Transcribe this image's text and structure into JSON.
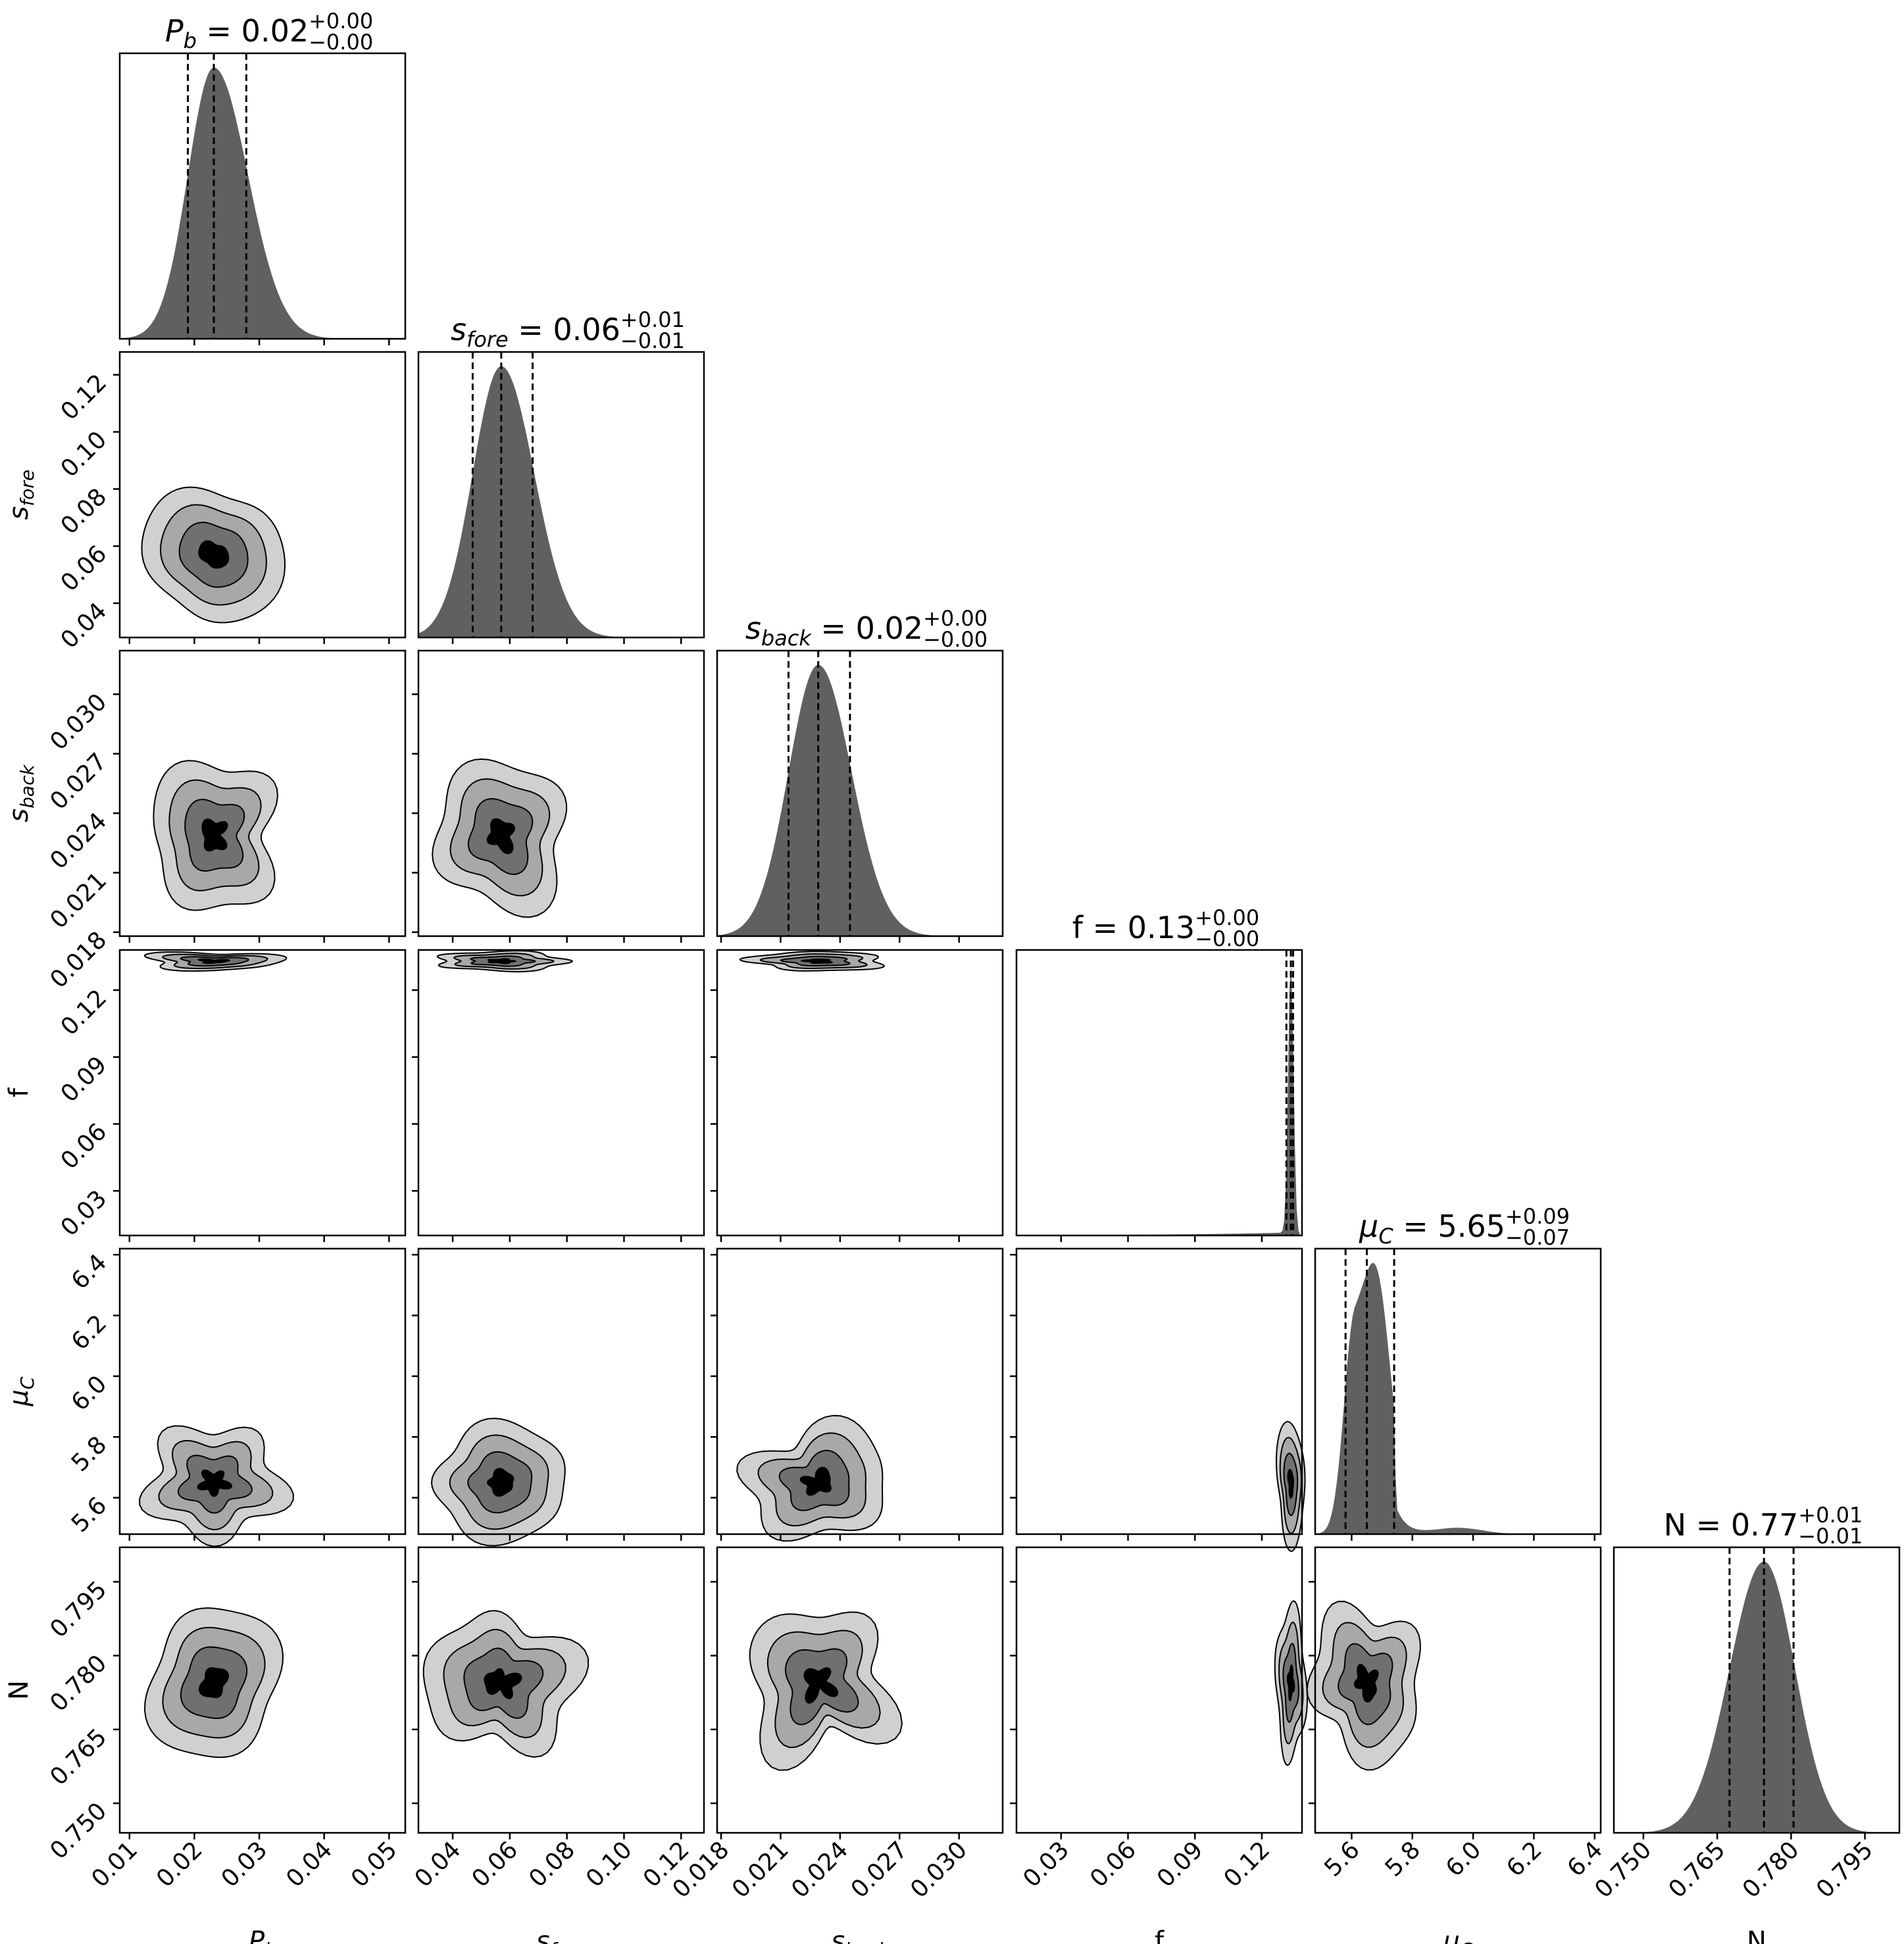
{
  "chart_data": {
    "type": "corner",
    "colors": {
      "hist_fill": "#606060",
      "contour_fills": [
        "#d0d0d0",
        "#a8a8a8",
        "#707070",
        "#000000"
      ],
      "frame": "#000000",
      "quantile_line": "#000000"
    },
    "grid": false,
    "parameters": [
      {
        "key": "P_b",
        "label": "P",
        "label_sub": "b",
        "median": 0.023,
        "q16": 0.019,
        "q84": 0.028,
        "range": [
          0.0085,
          0.0525
        ],
        "ticks": [
          "0.01",
          "0.02",
          "0.03",
          "0.04",
          "0.05"
        ],
        "tick_values": [
          0.01,
          0.02,
          0.03,
          0.04,
          0.05
        ],
        "title_value": "0.02",
        "title_plus": "+0.00",
        "title_minus": "−0.00"
      },
      {
        "key": "s_fore",
        "label": "s",
        "label_sub": "fore",
        "median": 0.057,
        "q16": 0.047,
        "q84": 0.068,
        "range": [
          0.028,
          0.128
        ],
        "ticks": [
          "0.04",
          "0.06",
          "0.08",
          "0.10",
          "0.12"
        ],
        "tick_values": [
          0.04,
          0.06,
          0.08,
          0.1,
          0.12
        ],
        "title_value": "0.06",
        "title_plus": "+0.01",
        "title_minus": "−0.01"
      },
      {
        "key": "s_back",
        "label": "s",
        "label_sub": "back",
        "median": 0.0229,
        "q16": 0.0214,
        "q84": 0.0245,
        "range": [
          0.0178,
          0.0322
        ],
        "ticks": [
          "0.018",
          "0.021",
          "0.024",
          "0.027",
          "0.030"
        ],
        "tick_values": [
          0.018,
          0.021,
          0.024,
          0.027,
          0.03
        ],
        "title_value": "0.02",
        "title_plus": "+0.00",
        "title_minus": "−0.00"
      },
      {
        "key": "f",
        "label": "f",
        "label_sub": "",
        "median": 0.133,
        "q16": 0.131,
        "q84": 0.134,
        "range": [
          0.01,
          0.138
        ],
        "ticks": [
          "0.03",
          "0.06",
          "0.09",
          "0.12"
        ],
        "tick_values": [
          0.03,
          0.06,
          0.09,
          0.12
        ],
        "title_value": "0.13",
        "title_plus": "+0.00",
        "title_minus": "−0.00"
      },
      {
        "key": "mu_C",
        "label": "μ",
        "label_sub": "C",
        "median": 5.65,
        "q16": 5.58,
        "q84": 5.74,
        "range": [
          5.48,
          6.42
        ],
        "ticks": [
          "5.6",
          "5.8",
          "6.0",
          "6.2",
          "6.4"
        ],
        "tick_values": [
          5.6,
          5.8,
          6.0,
          6.2,
          6.4
        ],
        "title_value": "5.65",
        "title_plus": "+0.09",
        "title_minus": "−0.07"
      },
      {
        "key": "N",
        "label": "N",
        "label_sub": "",
        "median": 0.7745,
        "q16": 0.7675,
        "q84": 0.7805,
        "range": [
          0.744,
          0.802
        ],
        "ticks": [
          "0.750",
          "0.765",
          "0.780",
          "0.795"
        ],
        "tick_values": [
          0.75,
          0.765,
          0.78,
          0.795
        ],
        "title_value": "0.77",
        "title_plus": "+0.01",
        "title_minus": "−0.01"
      }
    ]
  }
}
